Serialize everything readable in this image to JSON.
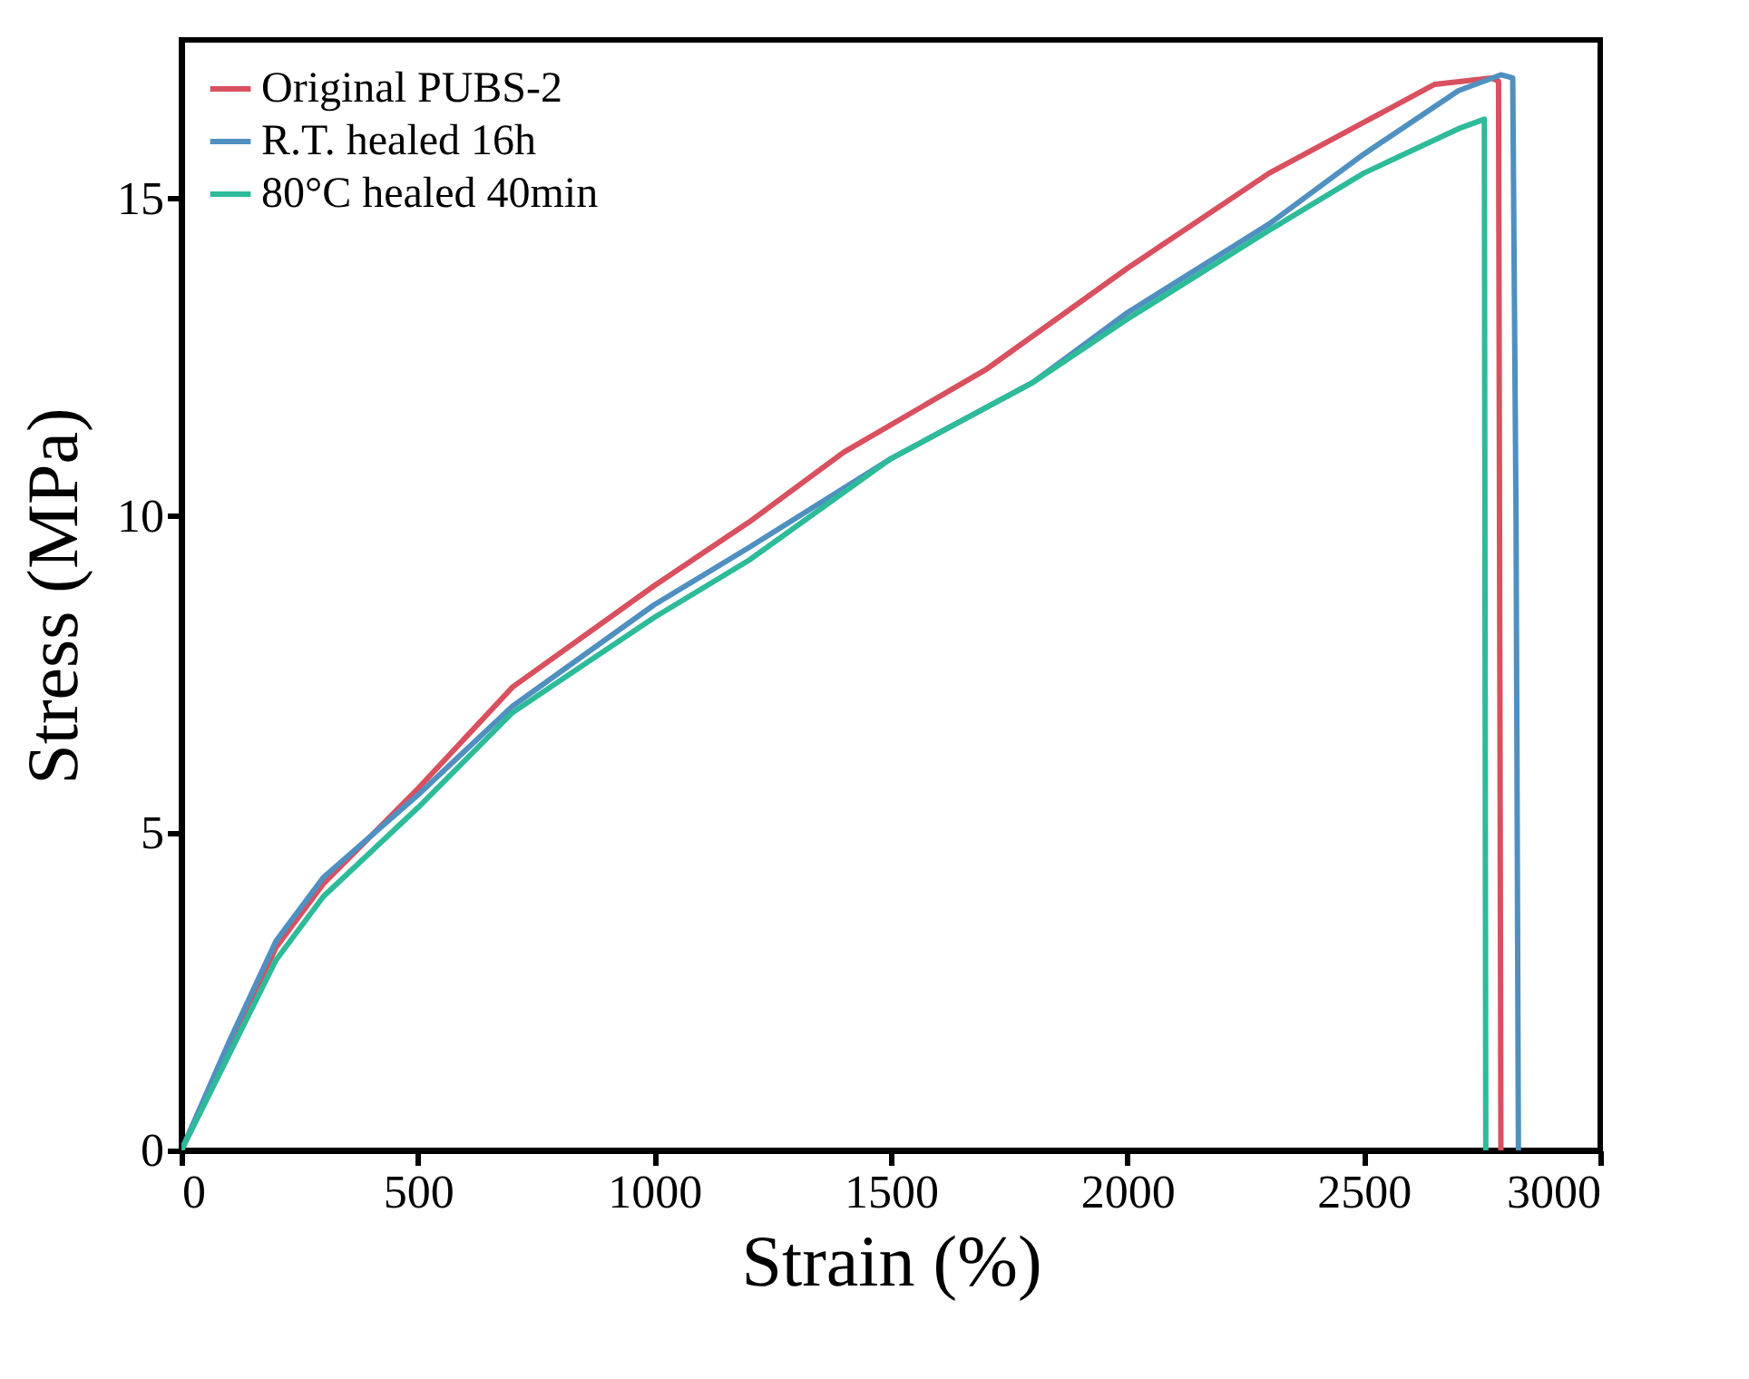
{
  "chart_data": {
    "type": "line",
    "xlabel": "Strain (%)",
    "ylabel": "Stress (MPa)",
    "xlim": [
      0,
      3000
    ],
    "xticks": [
      0,
      500,
      1000,
      1500,
      2000,
      2500,
      3000
    ],
    "ylim": [
      0,
      17.5
    ],
    "yticks": [
      0,
      5,
      10,
      15
    ],
    "grid": false,
    "legend": "top left",
    "line_style": "solid",
    "marker": "none",
    "series": [
      {
        "name": "Original PUBS-2",
        "color": "#d9505f",
        "x": [
          0,
          100,
          200,
          300,
          500,
          700,
          1000,
          1200,
          1400,
          1700,
          2000,
          2300,
          2500,
          2650,
          2770,
          2785,
          2790
        ],
        "values": [
          0,
          1.6,
          3.2,
          4.2,
          5.7,
          7.3,
          8.9,
          9.9,
          11.0,
          12.3,
          13.9,
          15.4,
          16.2,
          16.8,
          16.9,
          16.85,
          0
        ]
      },
      {
        "name": "R.T. healed 16h",
        "color": "#4f90c0",
        "x": [
          0,
          100,
          200,
          300,
          500,
          700,
          1000,
          1200,
          1500,
          1800,
          2000,
          2300,
          2500,
          2700,
          2790,
          2815,
          2822,
          2827
        ],
        "values": [
          0,
          1.7,
          3.3,
          4.3,
          5.6,
          7.0,
          8.6,
          9.5,
          10.9,
          12.1,
          13.2,
          14.6,
          15.7,
          16.7,
          16.95,
          16.9,
          10,
          0
        ]
      },
      {
        "name": "80°C healed 40min",
        "color": "#2dbb99",
        "x": [
          0,
          100,
          200,
          300,
          500,
          700,
          1000,
          1200,
          1500,
          1800,
          2000,
          2300,
          2500,
          2700,
          2755,
          2758
        ],
        "values": [
          0,
          1.5,
          3.0,
          4.0,
          5.4,
          6.9,
          8.4,
          9.3,
          10.9,
          12.1,
          13.1,
          14.5,
          15.4,
          16.1,
          16.25,
          0
        ]
      }
    ]
  }
}
